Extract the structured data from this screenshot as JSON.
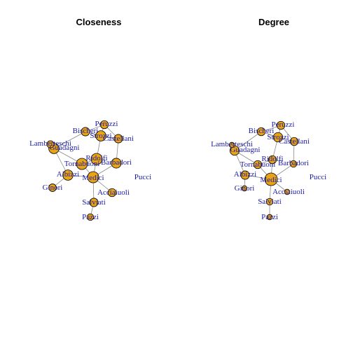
{
  "colors": {
    "node_fill": "#e8a317",
    "node_stroke": "#000000",
    "label": "#1a1aa6",
    "edge": "#8a8a8a"
  },
  "edges": [
    [
      "Acciaiuoli",
      "Medici"
    ],
    [
      "Albizzi",
      "Ginori"
    ],
    [
      "Albizzi",
      "Guadagni"
    ],
    [
      "Albizzi",
      "Medici"
    ],
    [
      "Barbadori",
      "Castellani"
    ],
    [
      "Barbadori",
      "Medici"
    ],
    [
      "Bischeri",
      "Guadagni"
    ],
    [
      "Bischeri",
      "Peruzzi"
    ],
    [
      "Bischeri",
      "Strozzi"
    ],
    [
      "Castellani",
      "Peruzzi"
    ],
    [
      "Castellani",
      "Strozzi"
    ],
    [
      "Guadagni",
      "Lamberteschi"
    ],
    [
      "Guadagni",
      "Tornabuoni"
    ],
    [
      "Medici",
      "Ridolfi"
    ],
    [
      "Medici",
      "Salviati"
    ],
    [
      "Medici",
      "Tornabuoni"
    ],
    [
      "Pazzi",
      "Salviati"
    ],
    [
      "Peruzzi",
      "Strozzi"
    ],
    [
      "Ridolfi",
      "Strozzi"
    ],
    [
      "Ridolfi",
      "Tornabuoni"
    ]
  ],
  "panels": [
    {
      "title": "Closeness",
      "nodes": [
        {
          "name": "Acciaiuoli",
          "size": 0.5
        },
        {
          "name": "Albizzi",
          "size": 0.75
        },
        {
          "name": "Barbadori",
          "size": 0.7
        },
        {
          "name": "Bischeri",
          "size": 0.55
        },
        {
          "name": "Castellani",
          "size": 0.55
        },
        {
          "name": "Ginori",
          "size": 0.45
        },
        {
          "name": "Guadagni",
          "size": 0.75
        },
        {
          "name": "Lamberteschi",
          "size": 0.4
        },
        {
          "name": "Medici",
          "size": 0.85
        },
        {
          "name": "Pazzi",
          "size": 0.35
        },
        {
          "name": "Peruzzi",
          "size": 0.5
        },
        {
          "name": "Pucci",
          "size": 0.0
        },
        {
          "name": "Ridolfi",
          "size": 0.85
        },
        {
          "name": "Salviati",
          "size": 0.55
        },
        {
          "name": "Strozzi",
          "size": 0.75
        },
        {
          "name": "Tornabuoni",
          "size": 0.85
        }
      ]
    },
    {
      "title": "Degree",
      "nodes": [
        {
          "name": "Acciaiuoli",
          "size": 0.2
        },
        {
          "name": "Albizzi",
          "size": 0.55
        },
        {
          "name": "Barbadori",
          "size": 0.35
        },
        {
          "name": "Bischeri",
          "size": 0.5
        },
        {
          "name": "Castellani",
          "size": 0.5
        },
        {
          "name": "Ginori",
          "size": 0.2
        },
        {
          "name": "Guadagni",
          "size": 0.65
        },
        {
          "name": "Lamberteschi",
          "size": 0.2
        },
        {
          "name": "Medici",
          "size": 1.0
        },
        {
          "name": "Pazzi",
          "size": 0.2
        },
        {
          "name": "Peruzzi",
          "size": 0.5
        },
        {
          "name": "Pucci",
          "size": 0.0
        },
        {
          "name": "Ridolfi",
          "size": 0.5
        },
        {
          "name": "Salviati",
          "size": 0.35
        },
        {
          "name": "Strozzi",
          "size": 0.65
        },
        {
          "name": "Tornabuoni",
          "size": 0.5
        }
      ]
    }
  ]
}
